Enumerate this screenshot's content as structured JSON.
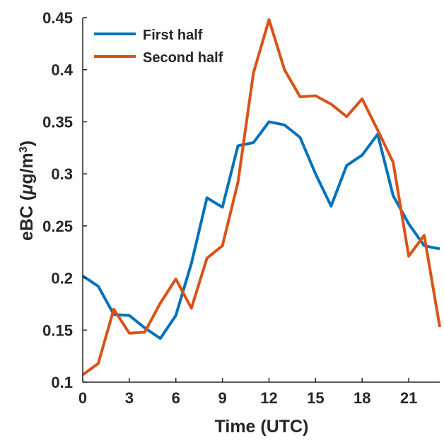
{
  "chart_data": {
    "type": "line",
    "title": "",
    "xlabel": "Time (UTC)",
    "ylabel": {
      "main": "eBC (",
      "mu": "μ",
      "unit": "g/m",
      "sup": "3",
      "close": ")"
    },
    "xlim": [
      0,
      23
    ],
    "ylim": [
      0.1,
      0.45
    ],
    "x_ticks": [
      0,
      3,
      6,
      9,
      12,
      15,
      18,
      21
    ],
    "y_ticks": [
      0.1,
      0.15,
      0.2,
      0.25,
      0.3,
      0.35,
      0.4,
      0.45
    ],
    "x_tick_labels": [
      "0",
      "3",
      "6",
      "9",
      "12",
      "15",
      "18",
      "21"
    ],
    "y_tick_labels": [
      "0.1",
      "0.15",
      "0.2",
      "0.25",
      "0.3",
      "0.35",
      "0.4",
      "0.45"
    ],
    "legend_position": "top-left",
    "grid": false,
    "x": [
      0,
      1,
      2,
      3,
      4,
      5,
      6,
      7,
      8,
      9,
      10,
      11,
      12,
      13,
      14,
      15,
      16,
      17,
      18,
      19,
      20,
      21,
      22,
      23
    ],
    "series": [
      {
        "name": "First half",
        "color": "#0072BD",
        "values": [
          0.202,
          0.192,
          0.165,
          0.164,
          0.152,
          0.142,
          0.164,
          0.214,
          0.277,
          0.268,
          0.327,
          0.33,
          0.35,
          0.347,
          0.335,
          0.3,
          0.269,
          0.308,
          0.318,
          0.338,
          0.279,
          0.252,
          0.231,
          0.228
        ]
      },
      {
        "name": "Second half",
        "color": "#D95319",
        "values": [
          0.107,
          0.118,
          0.17,
          0.147,
          0.148,
          0.176,
          0.199,
          0.171,
          0.219,
          0.231,
          0.292,
          0.397,
          0.448,
          0.4,
          0.374,
          0.375,
          0.367,
          0.355,
          0.372,
          0.342,
          0.311,
          0.221,
          0.241,
          0.153
        ]
      }
    ]
  }
}
